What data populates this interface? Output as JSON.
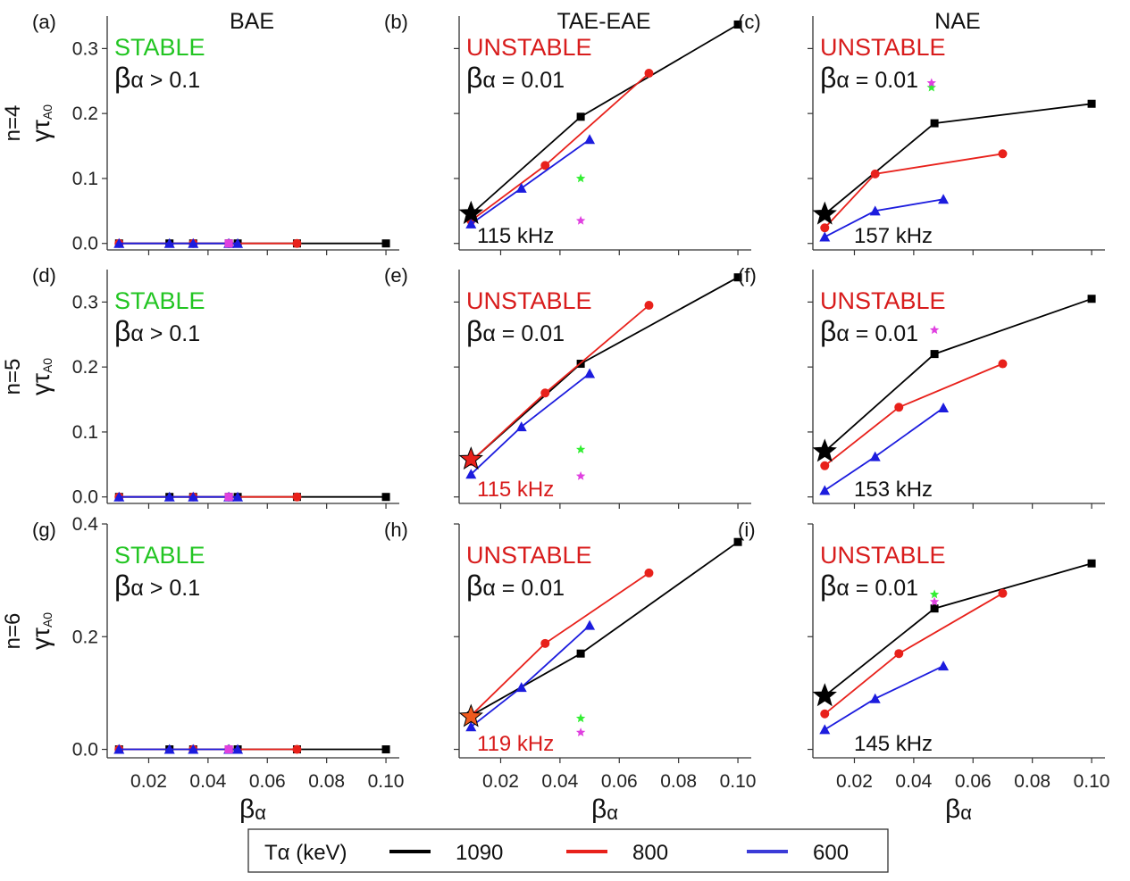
{
  "figure": {
    "columns": [
      "BAE",
      "TAE-EAE",
      "NAE"
    ],
    "row_labels": [
      "n=4",
      "n=5",
      "n=6"
    ],
    "y_axis_symbol": "γτ",
    "y_axis_subscript": "A0",
    "x_axis_symbol": "β",
    "x_axis_subscript": "α",
    "x_ticks": [
      "0.02",
      "0.04",
      "0.06",
      "0.08",
      "0.10"
    ],
    "x_tick_values": [
      0.02,
      0.04,
      0.06,
      0.08,
      0.1
    ],
    "colors": {
      "1090": "#000000",
      "800": "#e8211b",
      "600": "#1c1cde",
      "stable": "#22c522",
      "unstable": "#d81c1c",
      "green_star": "#33ee33",
      "magenta_star": "#e040e0",
      "orange_star": "#f05a1e"
    }
  },
  "legend": {
    "title": "Tα (keV)",
    "entries": [
      {
        "label": "1090",
        "color": "#000000"
      },
      {
        "label": "800",
        "color": "#e8211b"
      },
      {
        "label": "600",
        "color": "#3b3bd8"
      }
    ]
  },
  "chart_data": [
    {
      "id": "a",
      "type": "line",
      "label": "(a)",
      "title": "BAE",
      "status": "STABLE",
      "status_color": "#22c522",
      "beta_note": "α > 0.1",
      "ylim": [
        -0.01,
        0.35
      ],
      "yticks": [
        0.0,
        0.1,
        0.2,
        0.3
      ],
      "ytick_labels": [
        "0.0",
        "0.1",
        "0.2",
        "0.3"
      ],
      "show_ytick_labels": true,
      "freq": null,
      "freq_color": "#111111",
      "series": [
        {
          "name": "1090",
          "marker": "square",
          "x": [
            0.01,
            0.027,
            0.035,
            0.047,
            0.05,
            0.07,
            0.1
          ],
          "y": [
            0,
            0,
            0,
            0,
            0,
            0,
            0
          ]
        },
        {
          "name": "800",
          "marker": "circle",
          "x": [
            0.01,
            0.035,
            0.047,
            0.07
          ],
          "y": [
            0,
            0,
            0,
            0
          ]
        },
        {
          "name": "600",
          "marker": "triangle",
          "x": [
            0.01,
            0.027,
            0.035,
            0.047,
            0.05
          ],
          "y": [
            0,
            0,
            0,
            0,
            0
          ]
        }
      ],
      "markers": [
        {
          "kind": "square",
          "x": 0.047,
          "y": 0.0,
          "color": "#e040e0"
        }
      ]
    },
    {
      "id": "b",
      "type": "line",
      "label": "(b)",
      "title": "TAE-EAE",
      "status": "UNSTABLE",
      "status_color": "#d81c1c",
      "beta_note": "α = 0.01",
      "ylim": [
        -0.01,
        0.35
      ],
      "yticks": [
        0.0,
        0.1,
        0.2,
        0.3
      ],
      "ytick_labels": [
        "0.0",
        "0.1",
        "0.2",
        "0.3"
      ],
      "show_ytick_labels": false,
      "freq": "115 kHz",
      "freq_color": "#111111",
      "series": [
        {
          "name": "1090",
          "marker": "square",
          "x": [
            0.01,
            0.047,
            0.1
          ],
          "y": [
            0.045,
            0.195,
            0.337
          ]
        },
        {
          "name": "800",
          "marker": "circle",
          "x": [
            0.01,
            0.035,
            0.07
          ],
          "y": [
            0.035,
            0.12,
            0.262
          ]
        },
        {
          "name": "600",
          "marker": "triangle",
          "x": [
            0.01,
            0.027,
            0.05
          ],
          "y": [
            0.03,
            0.085,
            0.16
          ]
        }
      ],
      "markers": [
        {
          "kind": "star",
          "x": 0.01,
          "y": 0.046,
          "color": "#000000",
          "size": "big"
        },
        {
          "kind": "star",
          "x": 0.047,
          "y": 0.1,
          "color": "#33ee33",
          "size": "small"
        },
        {
          "kind": "star",
          "x": 0.047,
          "y": 0.035,
          "color": "#e040e0",
          "size": "small"
        }
      ]
    },
    {
      "id": "c",
      "type": "line",
      "label": "(c)",
      "title": "NAE",
      "status": "UNSTABLE",
      "status_color": "#d81c1c",
      "beta_note": "α = 0.01",
      "ylim": [
        -0.01,
        0.35
      ],
      "yticks": [
        0.0,
        0.1,
        0.2,
        0.3
      ],
      "ytick_labels": [
        "0.0",
        "0.1",
        "0.2",
        "0.3"
      ],
      "show_ytick_labels": false,
      "freq": "157 kHz",
      "freq_color": "#111111",
      "series": [
        {
          "name": "1090",
          "marker": "square",
          "x": [
            0.01,
            0.047,
            0.1
          ],
          "y": [
            0.045,
            0.185,
            0.215
          ]
        },
        {
          "name": "800",
          "marker": "circle",
          "x": [
            0.01,
            0.027,
            0.07
          ],
          "y": [
            0.024,
            0.107,
            0.138
          ]
        },
        {
          "name": "600",
          "marker": "triangle",
          "x": [
            0.01,
            0.027,
            0.05
          ],
          "y": [
            0.01,
            0.05,
            0.068
          ]
        }
      ],
      "markers": [
        {
          "kind": "star",
          "x": 0.01,
          "y": 0.045,
          "color": "#000000",
          "size": "big"
        },
        {
          "kind": "star",
          "x": 0.046,
          "y": 0.24,
          "color": "#33ee33",
          "size": "small"
        },
        {
          "kind": "star",
          "x": 0.046,
          "y": 0.247,
          "color": "#e040e0",
          "size": "small"
        }
      ]
    },
    {
      "id": "d",
      "type": "line",
      "label": "(d)",
      "title": "",
      "status": "STABLE",
      "status_color": "#22c522",
      "beta_note": "α > 0.1",
      "ylim": [
        -0.01,
        0.35
      ],
      "yticks": [
        0.0,
        0.1,
        0.2,
        0.3
      ],
      "ytick_labels": [
        "0.0",
        "0.1",
        "0.2",
        "0.3"
      ],
      "show_ytick_labels": true,
      "freq": null,
      "freq_color": "#111111",
      "series": [
        {
          "name": "1090",
          "marker": "square",
          "x": [
            0.01,
            0.027,
            0.035,
            0.047,
            0.05,
            0.07,
            0.1
          ],
          "y": [
            0,
            0,
            0,
            0,
            0,
            0,
            0
          ]
        },
        {
          "name": "800",
          "marker": "circle",
          "x": [
            0.01,
            0.035,
            0.047,
            0.07
          ],
          "y": [
            0,
            0,
            0,
            0
          ]
        },
        {
          "name": "600",
          "marker": "triangle",
          "x": [
            0.01,
            0.027,
            0.035,
            0.047,
            0.05
          ],
          "y": [
            0,
            0,
            0,
            0,
            0
          ]
        }
      ],
      "markers": [
        {
          "kind": "square",
          "x": 0.047,
          "y": 0.0,
          "color": "#e040e0"
        }
      ]
    },
    {
      "id": "e",
      "type": "line",
      "label": "(e)",
      "title": "",
      "status": "UNSTABLE",
      "status_color": "#d81c1c",
      "beta_note": "α = 0.01",
      "ylim": [
        -0.01,
        0.35
      ],
      "yticks": [
        0.0,
        0.1,
        0.2,
        0.3
      ],
      "ytick_labels": [
        "0.0",
        "0.1",
        "0.2",
        "0.3"
      ],
      "show_ytick_labels": false,
      "freq": "115 kHz",
      "freq_color": "#d81c1c",
      "series": [
        {
          "name": "1090",
          "marker": "square",
          "x": [
            0.01,
            0.047,
            0.1
          ],
          "y": [
            0.055,
            0.205,
            0.338
          ]
        },
        {
          "name": "800",
          "marker": "circle",
          "x": [
            0.01,
            0.035,
            0.07
          ],
          "y": [
            0.055,
            0.16,
            0.295
          ]
        },
        {
          "name": "600",
          "marker": "triangle",
          "x": [
            0.01,
            0.027,
            0.05
          ],
          "y": [
            0.035,
            0.108,
            0.19
          ]
        }
      ],
      "markers": [
        {
          "kind": "star",
          "x": 0.01,
          "y": 0.058,
          "color": "#e8211b",
          "size": "big"
        },
        {
          "kind": "star",
          "x": 0.047,
          "y": 0.073,
          "color": "#33ee33",
          "size": "small"
        },
        {
          "kind": "star",
          "x": 0.047,
          "y": 0.032,
          "color": "#e040e0",
          "size": "small"
        }
      ]
    },
    {
      "id": "f",
      "type": "line",
      "label": "(f)",
      "title": "",
      "status": "UNSTABLE",
      "status_color": "#d81c1c",
      "beta_note": "α = 0.01",
      "ylim": [
        -0.01,
        0.35
      ],
      "yticks": [
        0.0,
        0.1,
        0.2,
        0.3
      ],
      "ytick_labels": [
        "0.0",
        "0.1",
        "0.2",
        "0.3"
      ],
      "show_ytick_labels": false,
      "freq": "153 kHz",
      "freq_color": "#111111",
      "series": [
        {
          "name": "1090",
          "marker": "square",
          "x": [
            0.01,
            0.047,
            0.1
          ],
          "y": [
            0.07,
            0.22,
            0.305
          ]
        },
        {
          "name": "800",
          "marker": "circle",
          "x": [
            0.01,
            0.035,
            0.07
          ],
          "y": [
            0.048,
            0.138,
            0.205
          ]
        },
        {
          "name": "600",
          "marker": "triangle",
          "x": [
            0.01,
            0.027,
            0.05
          ],
          "y": [
            0.01,
            0.062,
            0.137
          ]
        }
      ],
      "markers": [
        {
          "kind": "star",
          "x": 0.01,
          "y": 0.07,
          "color": "#000000",
          "size": "big"
        },
        {
          "kind": "star",
          "x": 0.047,
          "y": 0.257,
          "color": "#e040e0",
          "size": "small"
        }
      ]
    },
    {
      "id": "g",
      "type": "line",
      "label": "(g)",
      "title": "",
      "status": "STABLE",
      "status_color": "#22c522",
      "beta_note": "α > 0.1",
      "ylim": [
        -0.015,
        0.4
      ],
      "yticks": [
        0.0,
        0.2,
        0.4
      ],
      "ytick_labels": [
        "0.0",
        "0.2",
        "0.4"
      ],
      "show_ytick_labels": true,
      "freq": null,
      "freq_color": "#111111",
      "series": [
        {
          "name": "1090",
          "marker": "square",
          "x": [
            0.01,
            0.027,
            0.035,
            0.047,
            0.05,
            0.07,
            0.1
          ],
          "y": [
            0,
            0,
            0,
            0,
            0,
            0,
            0
          ]
        },
        {
          "name": "800",
          "marker": "circle",
          "x": [
            0.01,
            0.035,
            0.047,
            0.07
          ],
          "y": [
            0,
            0,
            0,
            0
          ]
        },
        {
          "name": "600",
          "marker": "triangle",
          "x": [
            0.01,
            0.027,
            0.035,
            0.047,
            0.05
          ],
          "y": [
            0,
            0,
            0,
            0,
            0
          ]
        }
      ],
      "markers": [
        {
          "kind": "square",
          "x": 0.047,
          "y": 0.0,
          "color": "#e040e0"
        }
      ]
    },
    {
      "id": "h",
      "type": "line",
      "label": "(h)",
      "title": "",
      "status": "UNSTABLE",
      "status_color": "#d81c1c",
      "beta_note": "α = 0.01",
      "ylim": [
        -0.015,
        0.4
      ],
      "yticks": [
        0.0,
        0.2,
        0.4
      ],
      "ytick_labels": [
        "0.0",
        "0.2",
        "0.4"
      ],
      "show_ytick_labels": false,
      "freq": "119 kHz",
      "freq_color": "#d81c1c",
      "series": [
        {
          "name": "1090",
          "marker": "square",
          "x": [
            0.01,
            0.047,
            0.1
          ],
          "y": [
            0.06,
            0.17,
            0.368
          ]
        },
        {
          "name": "800",
          "marker": "circle",
          "x": [
            0.01,
            0.035,
            0.07
          ],
          "y": [
            0.06,
            0.188,
            0.313
          ]
        },
        {
          "name": "600",
          "marker": "triangle",
          "x": [
            0.01,
            0.027,
            0.05
          ],
          "y": [
            0.04,
            0.11,
            0.22
          ]
        }
      ],
      "markers": [
        {
          "kind": "star",
          "x": 0.01,
          "y": 0.058,
          "color": "#f05a1e",
          "size": "big"
        },
        {
          "kind": "star",
          "x": 0.047,
          "y": 0.055,
          "color": "#33ee33",
          "size": "small"
        },
        {
          "kind": "star",
          "x": 0.047,
          "y": 0.03,
          "color": "#e040e0",
          "size": "small"
        }
      ]
    },
    {
      "id": "i",
      "type": "line",
      "label": "(i)",
      "title": "",
      "status": "UNSTABLE",
      "status_color": "#d81c1c",
      "beta_note": "α = 0.01",
      "ylim": [
        -0.015,
        0.4
      ],
      "yticks": [
        0.0,
        0.2,
        0.4
      ],
      "ytick_labels": [
        "0.0",
        "0.2",
        "0.4"
      ],
      "show_ytick_labels": false,
      "freq": "145 kHz",
      "freq_color": "#111111",
      "series": [
        {
          "name": "1090",
          "marker": "square",
          "x": [
            0.01,
            0.047,
            0.1
          ],
          "y": [
            0.095,
            0.25,
            0.33
          ]
        },
        {
          "name": "800",
          "marker": "circle",
          "x": [
            0.01,
            0.035,
            0.07
          ],
          "y": [
            0.063,
            0.17,
            0.277
          ]
        },
        {
          "name": "600",
          "marker": "triangle",
          "x": [
            0.01,
            0.027,
            0.05
          ],
          "y": [
            0.035,
            0.09,
            0.148
          ]
        }
      ],
      "markers": [
        {
          "kind": "star",
          "x": 0.01,
          "y": 0.095,
          "color": "#000000",
          "size": "big"
        },
        {
          "kind": "star",
          "x": 0.047,
          "y": 0.275,
          "color": "#33ee33",
          "size": "small"
        },
        {
          "kind": "star",
          "x": 0.047,
          "y": 0.262,
          "color": "#e040e0",
          "size": "small"
        }
      ]
    }
  ]
}
